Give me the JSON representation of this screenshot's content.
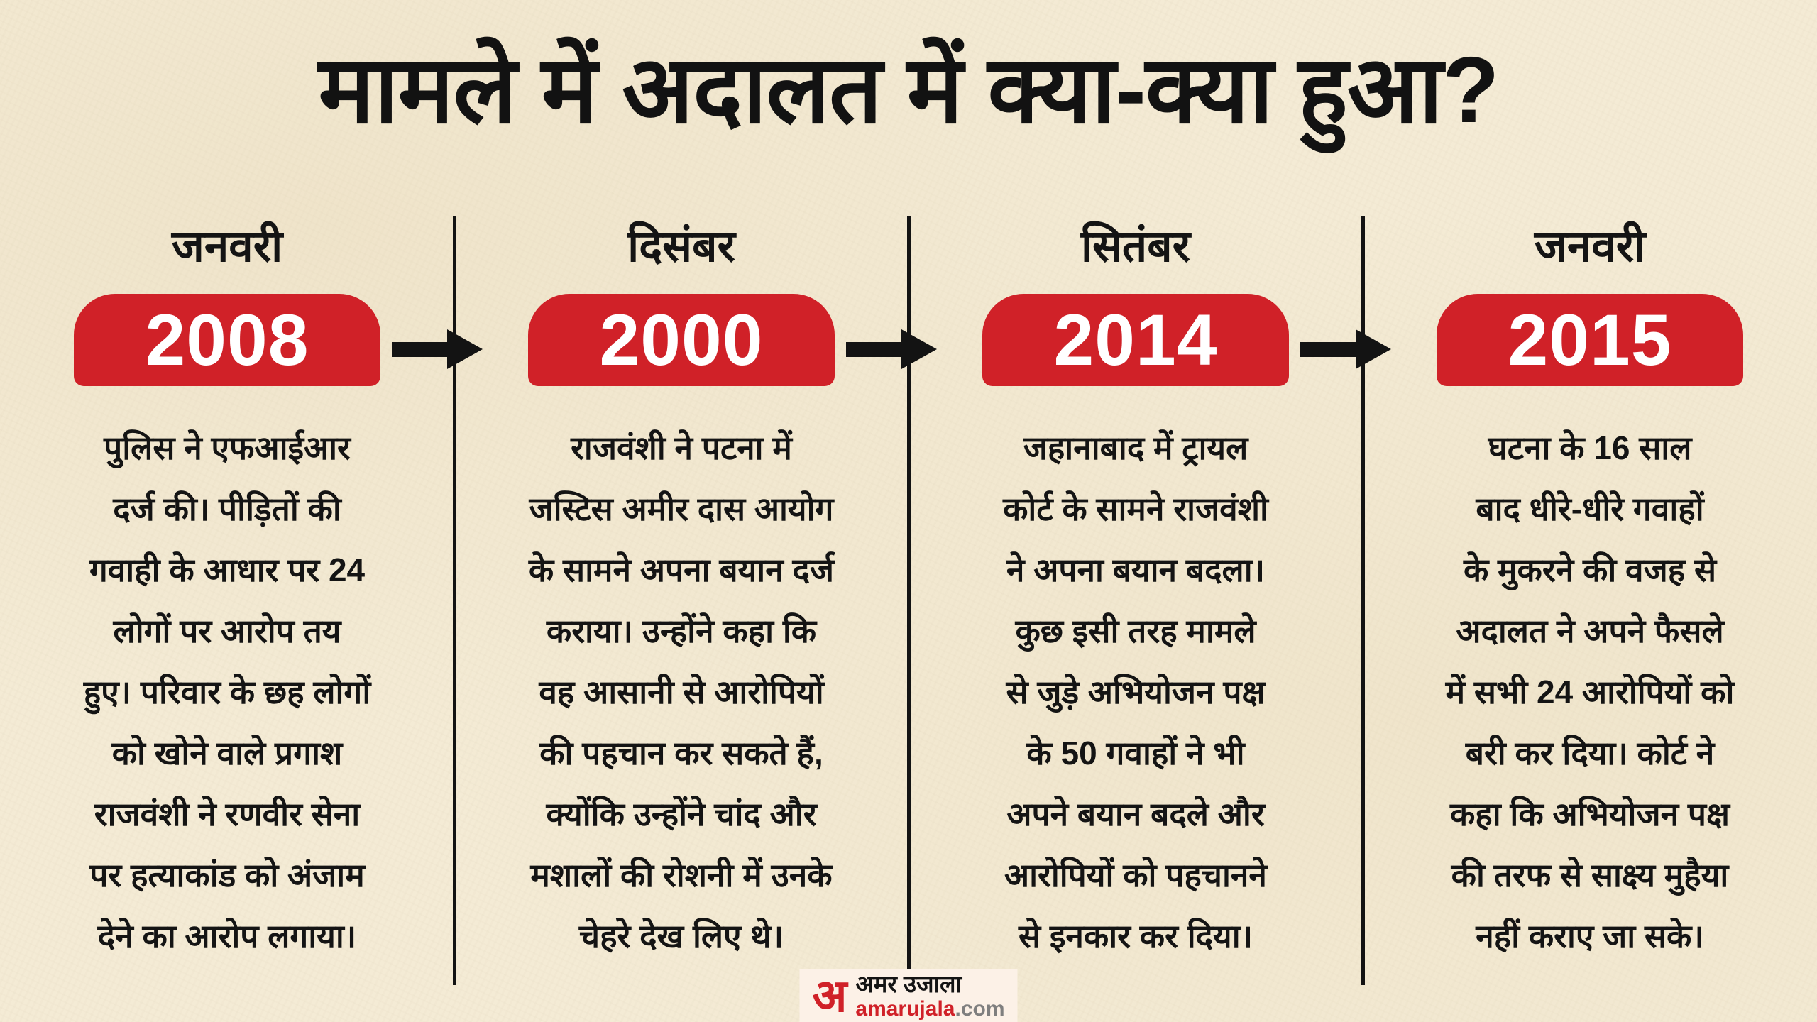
{
  "title": "मामले में अदालत में क्या-क्या हुआ?",
  "colors": {
    "accent_red": "#d02128",
    "background_paper": "#f4ebd5",
    "text_black": "#141414"
  },
  "timeline": {
    "columns": [
      {
        "month": "जनवरी",
        "year": "2008",
        "body": "पुलिस ने एफआईआर\nदर्ज की। पीड़ितों की\nगवाही के आधार पर 24\nलोगों पर आरोप तय\nहुए। परिवार के छह लोगों\nको खोने वाले प्रगाश\nराजवंशी ने रणवीर सेना\nपर हत्याकांड को अंजाम\nदेने का आरोप लगाया।"
      },
      {
        "month": "दिसंबर",
        "year": "2000",
        "body": "राजवंशी ने पटना में\nजस्टिस अमीर दास आयोग\nके सामने अपना बयान दर्ज\nकराया। उन्होंने कहा कि\nवह आसानी से आरोपियों\nकी पहचान कर सकते हैं,\nक्योंकि उन्होंने चांद और\nमशालों की रोशनी में उनके\nचेहरे देख लिए थे।"
      },
      {
        "month": "सितंबर",
        "year": "2014",
        "body": "जहानाबाद में ट्रायल\nकोर्ट के सामने राजवंशी\nने अपना बयान बदला।\nकुछ इसी तरह मामले\nसे जुड़े अभियोजन पक्ष\nके 50 गवाहों ने भी\nअपने बयान बदले और\nआरोपियों को पहचानने\nसे इनकार कर दिया।"
      },
      {
        "month": "जनवरी",
        "year": "2015",
        "body": "घटना के 16 साल\nबाद धीरे-धीरे गवाहों\nके मुकरने की वजह से\nअदालत ने अपने फैसले\nमें सभी 24 आरोपियों को\nबरी कर दिया। कोर्ट ने\nकहा कि अभियोजन पक्ष\nकी तरफ से साक्ष्य मुहैया\nनहीं कराए जा सके।"
      }
    ]
  },
  "footer": {
    "logo_letter": "अ",
    "brand_hindi": "अमर उजाला",
    "brand_latin": "amarujala",
    "brand_tld": ".com"
  }
}
